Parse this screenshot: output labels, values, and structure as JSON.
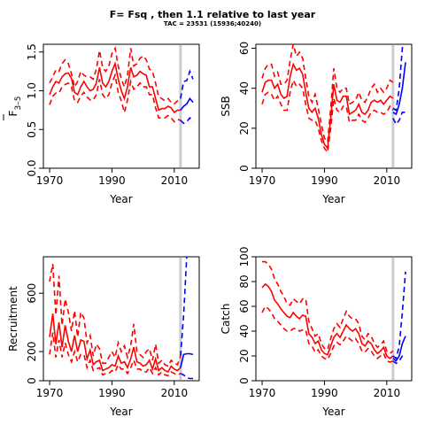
{
  "title": "F= Fsq , then 1.1  relative to last year",
  "subtitle": "TAC = 23531 (15936;40240)",
  "colors": {
    "historic": "#ff0000",
    "forecast": "#0000ff",
    "assessment_year_line": "#cccccc"
  },
  "chart_data": [
    {
      "type": "line",
      "id": "f",
      "xlabel": "Year",
      "ylabel": "F̅ 3–5",
      "ylabel_main": "F",
      "ylabel_sub": "3–5",
      "xlim": [
        1968,
        2018
      ],
      "ylim": [
        0,
        1.6
      ],
      "xticks": [
        "1970",
        "1990",
        "2010"
      ],
      "yticks": [
        "0.0",
        "0.5",
        "1.0",
        "1.5"
      ],
      "vline_year": 2012,
      "x": [
        1970,
        1971,
        1972,
        1973,
        1974,
        1975,
        1976,
        1977,
        1978,
        1979,
        1980,
        1981,
        1982,
        1983,
        1984,
        1985,
        1986,
        1987,
        1988,
        1989,
        1990,
        1991,
        1992,
        1993,
        1994,
        1995,
        1996,
        1997,
        1998,
        1999,
        2000,
        2001,
        2002,
        2003,
        2004,
        2005,
        2006,
        2007,
        2008,
        2009,
        2010,
        2011,
        2012
      ],
      "series": [
        {
          "role": "historic-median",
          "values": [
            0.95,
            1.05,
            1.12,
            1.1,
            1.18,
            1.22,
            1.23,
            1.16,
            0.98,
            0.95,
            1.05,
            1.12,
            1.05,
            1.0,
            1.02,
            1.1,
            1.3,
            1.1,
            1.05,
            1.12,
            1.25,
            1.35,
            1.15,
            1.0,
            0.9,
            1.05,
            1.3,
            1.18,
            1.2,
            1.25,
            1.22,
            1.2,
            1.05,
            1.05,
            0.9,
            0.75,
            0.77,
            0.77,
            0.8,
            0.78,
            0.72,
            0.75,
            0.75
          ]
        },
        {
          "role": "historic-upper",
          "values": [
            1.1,
            1.18,
            1.27,
            1.25,
            1.35,
            1.4,
            1.35,
            1.22,
            1.05,
            1.12,
            1.25,
            1.2,
            1.18,
            1.18,
            1.15,
            1.28,
            1.52,
            1.3,
            1.25,
            1.32,
            1.48,
            1.55,
            1.32,
            1.15,
            1.05,
            1.2,
            1.55,
            1.32,
            1.35,
            1.42,
            1.45,
            1.4,
            1.28,
            1.25,
            1.1,
            0.92,
            0.9,
            0.87,
            0.9,
            0.85,
            0.83,
            0.87,
            0.9
          ]
        },
        {
          "role": "historic-lower",
          "values": [
            0.82,
            0.93,
            0.97,
            0.97,
            1.05,
            1.08,
            1.1,
            1.05,
            0.87,
            0.85,
            0.93,
            0.98,
            0.92,
            0.88,
            0.88,
            0.95,
            1.15,
            0.95,
            0.9,
            0.95,
            1.1,
            1.2,
            0.98,
            0.87,
            0.72,
            0.88,
            1.12,
            1.02,
            1.05,
            1.1,
            1.05,
            1.05,
            0.95,
            0.95,
            0.78,
            0.65,
            0.65,
            0.65,
            0.68,
            0.65,
            0.6,
            0.63,
            0.62
          ]
        }
      ],
      "forecast_x": [
        2012,
        2013,
        2014,
        2015,
        2016
      ],
      "forecast_series": [
        {
          "role": "forecast-median",
          "values": [
            0.75,
            0.8,
            0.83,
            0.9,
            0.85
          ]
        },
        {
          "role": "forecast-upper",
          "values": [
            0.9,
            1.12,
            1.13,
            1.25,
            1.15
          ]
        },
        {
          "role": "forecast-lower",
          "values": [
            0.62,
            0.58,
            0.6,
            0.65,
            0.6
          ]
        }
      ]
    },
    {
      "type": "line",
      "id": "ssb",
      "xlabel": "Year",
      "ylabel": "SSB",
      "xlim": [
        1968,
        2018
      ],
      "ylim": [
        0,
        62
      ],
      "xticks": [
        "1970",
        "1990",
        "2010"
      ],
      "yticks": [
        "0",
        "20",
        "40",
        "60"
      ],
      "vline_year": 2012,
      "x": [
        1970,
        1971,
        1972,
        1973,
        1974,
        1975,
        1976,
        1977,
        1978,
        1979,
        1980,
        1981,
        1982,
        1983,
        1984,
        1985,
        1986,
        1987,
        1988,
        1989,
        1990,
        1991,
        1992,
        1993,
        1994,
        1995,
        1996,
        1997,
        1998,
        1999,
        2000,
        2001,
        2002,
        2003,
        2004,
        2005,
        2006,
        2007,
        2008,
        2009,
        2010,
        2011,
        2012
      ],
      "series": [
        {
          "role": "historic-median",
          "values": [
            38,
            43,
            44,
            44,
            40,
            42,
            37,
            35,
            36,
            46,
            52,
            49,
            50,
            47,
            38,
            30,
            28,
            30,
            25,
            17,
            12,
            10,
            25,
            42,
            34,
            33,
            36,
            36,
            27,
            28,
            29,
            32,
            28,
            27,
            29,
            33,
            34,
            33,
            34,
            32,
            34,
            36,
            35
          ]
        },
        {
          "role": "historic-upper",
          "values": [
            45,
            50,
            52,
            52,
            46,
            48,
            42,
            42,
            44,
            54,
            62,
            56,
            58,
            55,
            45,
            36,
            33,
            37,
            30,
            22,
            15,
            13,
            30,
            50,
            40,
            38,
            40,
            40,
            32,
            33,
            34,
            38,
            34,
            33,
            36,
            40,
            42,
            38,
            40,
            38,
            40,
            44,
            43
          ]
        },
        {
          "role": "historic-lower",
          "values": [
            32,
            37,
            38,
            37,
            34,
            36,
            32,
            29,
            29,
            38,
            44,
            41,
            42,
            40,
            32,
            25,
            24,
            24,
            20,
            14,
            10,
            8,
            20,
            35,
            29,
            28,
            31,
            31,
            23,
            24,
            24,
            27,
            24,
            23,
            25,
            28,
            29,
            28,
            28,
            27,
            28,
            31,
            29
          ]
        }
      ],
      "forecast_x": [
        2012,
        2013,
        2014,
        2015,
        2016
      ],
      "forecast_series": [
        {
          "role": "forecast-median",
          "values": [
            28,
            27,
            32,
            40,
            53
          ]
        },
        {
          "role": "forecast-upper",
          "values": [
            30,
            29,
            40,
            60,
            74
          ]
        },
        {
          "role": "forecast-lower",
          "values": [
            25,
            22,
            24,
            28,
            28
          ]
        }
      ]
    },
    {
      "type": "line",
      "id": "recruitment",
      "xlabel": "Year",
      "ylabel": "Recruitment",
      "xlim": [
        1968,
        2018
      ],
      "ylim": [
        0,
        850
      ],
      "xticks": [
        "1970",
        "1990",
        "2010"
      ],
      "yticks": [
        "0",
        "200",
        "600"
      ],
      "vline_year": 2012,
      "x": [
        1970,
        1971,
        1972,
        1973,
        1974,
        1975,
        1976,
        1977,
        1978,
        1979,
        1980,
        1981,
        1982,
        1983,
        1984,
        1985,
        1986,
        1987,
        1988,
        1989,
        1990,
        1991,
        1992,
        1993,
        1994,
        1995,
        1996,
        1997,
        1998,
        1999,
        2000,
        2001,
        2002,
        2003,
        2004,
        2005,
        2006,
        2007,
        2008,
        2009,
        2010,
        2011,
        2012
      ],
      "series": [
        {
          "role": "historic-median",
          "values": [
            300,
            460,
            250,
            400,
            230,
            380,
            270,
            200,
            310,
            200,
            280,
            270,
            150,
            210,
            110,
            130,
            140,
            70,
            80,
            90,
            110,
            100,
            170,
            120,
            130,
            90,
            150,
            230,
            130,
            120,
            100,
            110,
            140,
            80,
            150,
            70,
            90,
            70,
            60,
            100,
            80,
            70,
            90
          ]
        },
        {
          "role": "historic-upper",
          "values": [
            680,
            800,
            450,
            720,
            380,
            560,
            470,
            340,
            480,
            300,
            470,
            430,
            260,
            310,
            170,
            250,
            220,
            120,
            120,
            160,
            200,
            160,
            260,
            200,
            240,
            160,
            240,
            390,
            200,
            180,
            160,
            200,
            220,
            140,
            250,
            120,
            140,
            110,
            100,
            140,
            120,
            110,
            170
          ]
        },
        {
          "role": "historic-lower",
          "values": [
            180,
            330,
            160,
            280,
            160,
            260,
            180,
            130,
            200,
            130,
            180,
            180,
            90,
            140,
            70,
            80,
            90,
            40,
            50,
            50,
            70,
            60,
            110,
            80,
            80,
            50,
            90,
            140,
            80,
            80,
            60,
            60,
            90,
            50,
            90,
            40,
            60,
            40,
            35,
            60,
            50,
            40,
            50
          ]
        }
      ],
      "forecast_x": [
        2012,
        2013,
        2014,
        2015,
        2016
      ],
      "forecast_series": [
        {
          "role": "forecast-median",
          "values": [
            90,
            180,
            185,
            185,
            180
          ]
        },
        {
          "role": "forecast-upper",
          "values": [
            170,
            450,
            850,
            1200,
            1500
          ]
        },
        {
          "role": "forecast-lower",
          "values": [
            50,
            40,
            20,
            15,
            15
          ]
        }
      ]
    },
    {
      "type": "line",
      "id": "catch",
      "xlabel": "Year",
      "ylabel": "Catch",
      "xlim": [
        1968,
        2018
      ],
      "ylim": [
        0,
        100
      ],
      "xticks": [
        "1970",
        "1990",
        "2010"
      ],
      "yticks": [
        "0",
        "20",
        "40",
        "60",
        "80",
        "100"
      ],
      "vline_year": 2012,
      "x": [
        1970,
        1971,
        1972,
        1973,
        1974,
        1975,
        1976,
        1977,
        1978,
        1979,
        1980,
        1981,
        1982,
        1983,
        1984,
        1985,
        1986,
        1987,
        1988,
        1989,
        1990,
        1991,
        1992,
        1993,
        1994,
        1995,
        1996,
        1997,
        1998,
        1999,
        2000,
        2001,
        2002,
        2003,
        2004,
        2005,
        2006,
        2007,
        2008,
        2009,
        2010,
        2011,
        2012
      ],
      "series": [
        {
          "role": "historic-median",
          "values": [
            75,
            78,
            76,
            72,
            65,
            62,
            58,
            55,
            52,
            51,
            55,
            52,
            50,
            53,
            52,
            38,
            35,
            30,
            32,
            25,
            22,
            21,
            28,
            35,
            38,
            35,
            40,
            45,
            42,
            40,
            42,
            38,
            30,
            28,
            32,
            30,
            25,
            22,
            24,
            27,
            20,
            18,
            20
          ]
        },
        {
          "role": "historic-upper",
          "values": [
            96,
            96,
            94,
            90,
            82,
            78,
            72,
            68,
            62,
            61,
            66,
            64,
            62,
            66,
            66,
            48,
            42,
            36,
            38,
            30,
            26,
            25,
            34,
            42,
            46,
            43,
            50,
            56,
            52,
            50,
            50,
            46,
            36,
            33,
            38,
            36,
            30,
            27,
            29,
            32,
            24,
            22,
            24
          ]
        },
        {
          "role": "historic-lower",
          "values": [
            55,
            60,
            58,
            55,
            50,
            48,
            45,
            42,
            40,
            40,
            42,
            42,
            40,
            41,
            41,
            30,
            28,
            23,
            25,
            20,
            18,
            17,
            22,
            28,
            31,
            29,
            32,
            36,
            34,
            32,
            34,
            30,
            24,
            23,
            26,
            24,
            20,
            18,
            20,
            22,
            16,
            15,
            16
          ]
        }
      ],
      "forecast_x": [
        2012,
        2013,
        2014,
        2015,
        2016
      ],
      "forecast_series": [
        {
          "role": "forecast-median",
          "values": [
            18,
            16,
            20,
            30,
            36
          ]
        },
        {
          "role": "forecast-upper",
          "values": [
            20,
            18,
            28,
            55,
            88
          ]
        },
        {
          "role": "forecast-lower",
          "values": [
            16,
            14,
            16,
            20,
            22
          ]
        }
      ]
    }
  ]
}
